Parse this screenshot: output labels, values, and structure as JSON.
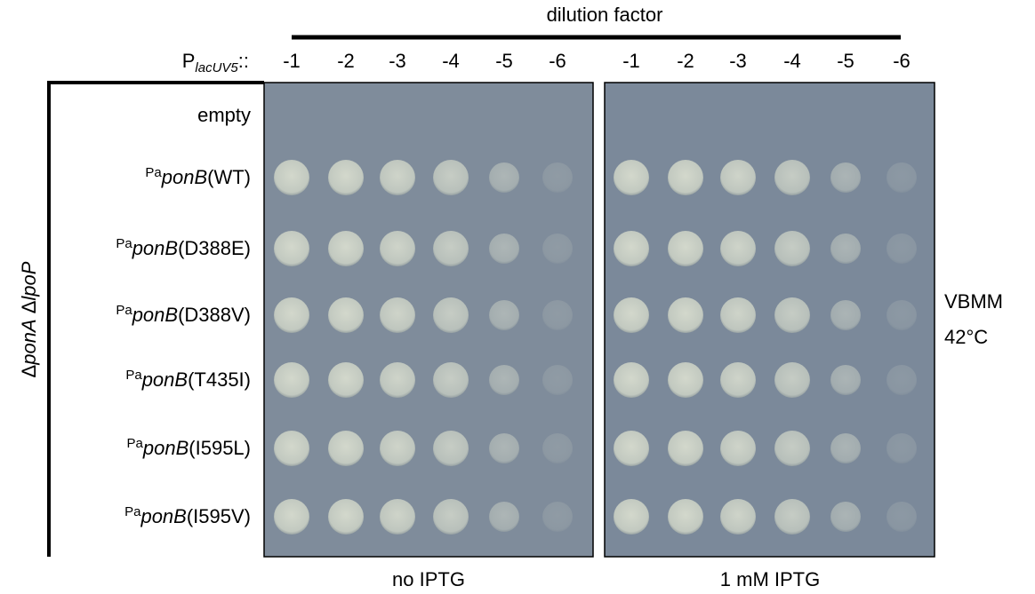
{
  "header": {
    "title": "dilution factor",
    "promoter": {
      "base": "P",
      "subscript": "lacUV5",
      "suffix": "::"
    }
  },
  "panels": [
    {
      "label": "no IPTG",
      "dilutions": [
        "-1",
        "-2",
        "-3",
        "-4",
        "-5",
        "-6"
      ]
    },
    {
      "label": "1 mM IPTG",
      "dilutions": [
        "-1",
        "-2",
        "-3",
        "-4",
        "-5",
        "-6"
      ]
    }
  ],
  "empty_row": "empty",
  "rows": [
    {
      "prefix": "Pa",
      "gene": "ponB",
      "variant": "(WT)"
    },
    {
      "prefix": "Pa",
      "gene": "ponB",
      "variant": "(D388E)"
    },
    {
      "prefix": "Pa",
      "gene": "ponB",
      "variant": "(D388V)"
    },
    {
      "prefix": "Pa",
      "gene": "ponB",
      "variant": "(T435I)"
    },
    {
      "prefix": "Pa",
      "gene": "ponB",
      "variant": "(I595L)"
    },
    {
      "prefix": "Pa",
      "gene": "ponB",
      "variant": "(I595V)"
    }
  ],
  "strain": [
    "Δ",
    "ponA",
    " Δ",
    "lpoP"
  ],
  "condition": {
    "medium": "VBMM",
    "temperature": "42°C"
  }
}
